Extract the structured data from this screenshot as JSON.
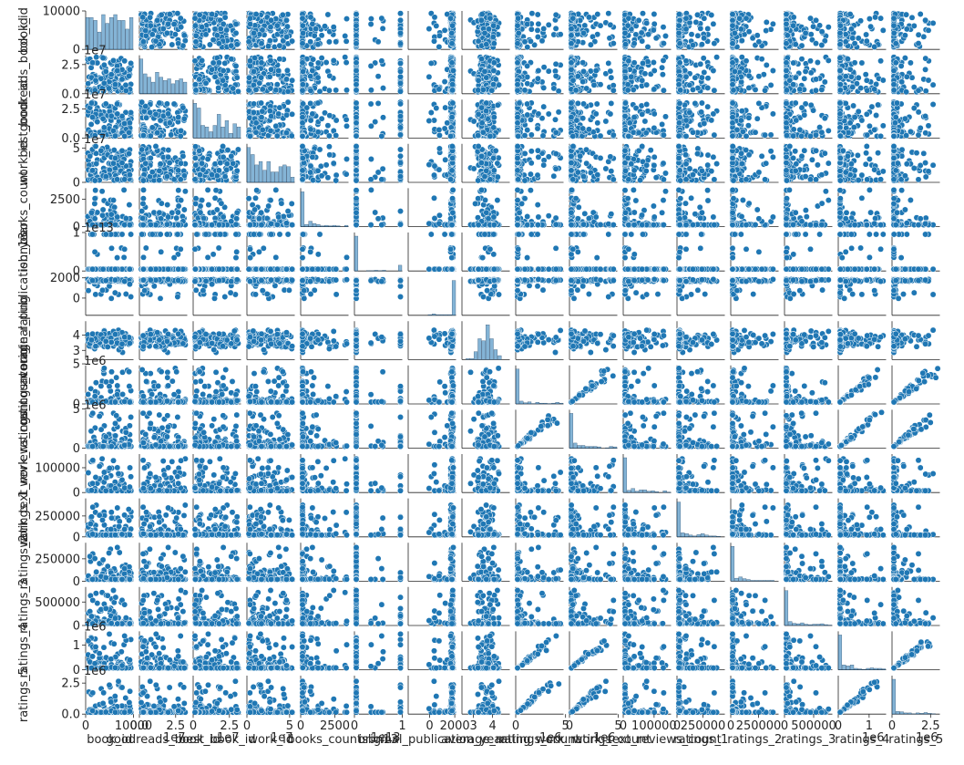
{
  "chart_data": {
    "type": "scatter",
    "kind": "pairplot",
    "marker_color": "#1f77b4",
    "diagonal": "histogram",
    "variables": [
      {
        "name": "book_id",
        "label": "book_id",
        "ylim": [
          0,
          10000
        ],
        "ticks": [
          0,
          10000
        ],
        "tick_labels": [
          "0",
          "10000"
        ],
        "xticks": [
          0,
          10000
        ],
        "xtick_labels": [
          "0",
          "10000"
        ],
        "offset": "",
        "pattern": "uniform"
      },
      {
        "name": "goodreads_book_id",
        "label": "goodreads_book_id",
        "ylim": [
          0,
          3.3
        ],
        "ticks": [
          0,
          2.5
        ],
        "tick_labels": [
          "0.0",
          "2.5"
        ],
        "xticks": [
          0,
          2.5
        ],
        "xtick_labels": [
          "0.0",
          "2.5"
        ],
        "offset": "1e7",
        "pattern": "skew"
      },
      {
        "name": "best_book_id",
        "label": "best_book_id",
        "ylim": [
          0,
          3.3
        ],
        "ticks": [
          0,
          2.5
        ],
        "tick_labels": [
          "0.0",
          "2.5"
        ],
        "xticks": [
          0,
          2.5
        ],
        "xtick_labels": [
          "0",
          "2.5"
        ],
        "offset": "1e7",
        "pattern": "skew"
      },
      {
        "name": "work_id",
        "label": "work_id",
        "ylim": [
          0,
          5.6
        ],
        "ticks": [
          0,
          5
        ],
        "tick_labels": [
          "0",
          "5"
        ],
        "xticks": [
          0,
          5
        ],
        "xtick_labels": [
          "0",
          "5"
        ],
        "offset": "1e7",
        "pattern": "skew"
      },
      {
        "name": "books_count",
        "label": "books_count",
        "ylim": [
          0,
          3500
        ],
        "ticks": [
          0,
          2500
        ],
        "tick_labels": [
          "0",
          "2500"
        ],
        "xticks": [
          0,
          2500
        ],
        "xtick_labels": [
          "0",
          "2500"
        ],
        "offset": "",
        "pattern": "heavy"
      },
      {
        "name": "isbn13",
        "label": "isbn13",
        "ylim": [
          0,
          1
        ],
        "ticks": [
          0,
          1
        ],
        "tick_labels": [
          "0",
          "1"
        ],
        "xticks": [
          0,
          1
        ],
        "xtick_labels": [
          "0",
          "1"
        ],
        "offset": "1e13",
        "pattern": "binary"
      },
      {
        "name": "original_publication_year",
        "label": "original_publication_year",
        "ylim": [
          -1700,
          2100
        ],
        "ticks": [
          0,
          2000
        ],
        "tick_labels": [
          "0",
          "2000"
        ],
        "xticks": [
          0,
          2000
        ],
        "xtick_labels": [
          "0",
          "2000"
        ],
        "offset": "",
        "pattern": "topheavy"
      },
      {
        "name": "average_rating",
        "label": "average_rating",
        "ylim": [
          2.4,
          4.9
        ],
        "ticks": [
          3,
          4
        ],
        "tick_labels": [
          "3",
          "4"
        ],
        "xticks": [
          3,
          4
        ],
        "xtick_labels": [
          "3",
          "4"
        ],
        "offset": "",
        "pattern": "normal"
      },
      {
        "name": "ratings_count",
        "label": "ratings_count",
        "ylim": [
          0,
          4.8
        ],
        "ticks": [
          0,
          5
        ],
        "tick_labels": [
          "0",
          "5"
        ],
        "xticks": [
          0,
          5
        ],
        "xtick_labels": [
          "0",
          "5"
        ],
        "offset": "1e6",
        "pattern": "heavy"
      },
      {
        "name": "work_ratings_count",
        "label": "work_ratings_count",
        "ylim": [
          0,
          4.9
        ],
        "ticks": [
          0,
          5
        ],
        "tick_labels": [
          "0",
          "5"
        ],
        "xticks": [
          0,
          5
        ],
        "xtick_labels": [
          "0",
          "5"
        ],
        "offset": "1e6",
        "pattern": "heavy"
      },
      {
        "name": "work_text_reviews_count",
        "label": "work_text_reviews_count",
        "ylim": [
          0,
          155000
        ],
        "ticks": [
          0,
          100000
        ],
        "tick_labels": [
          "0",
          "100000"
        ],
        "xticks": [
          0,
          100000
        ],
        "xtick_labels": [
          "0",
          "100000"
        ],
        "offset": "",
        "pattern": "heavy"
      },
      {
        "name": "ratings_1",
        "label": "ratings_1",
        "ylim": [
          0,
          460000
        ],
        "ticks": [
          0,
          250000
        ],
        "tick_labels": [
          "0",
          "250000"
        ],
        "xticks": [
          0,
          250000
        ],
        "xtick_labels": [
          "0",
          "250000"
        ],
        "offset": "",
        "pattern": "heavy"
      },
      {
        "name": "ratings_2",
        "label": "ratings_2",
        "ylim": [
          0,
          430000
        ],
        "ticks": [
          0,
          250000
        ],
        "tick_labels": [
          "0",
          "250000"
        ],
        "xticks": [
          0,
          250000
        ],
        "xtick_labels": [
          "0",
          "250000"
        ],
        "offset": "",
        "pattern": "heavy"
      },
      {
        "name": "ratings_3",
        "label": "ratings_3",
        "ylim": [
          0,
          820000
        ],
        "ticks": [
          0,
          500000
        ],
        "tick_labels": [
          "0",
          "500000"
        ],
        "xticks": [
          0,
          500000
        ],
        "xtick_labels": [
          "0",
          "500000"
        ],
        "offset": "",
        "pattern": "heavy"
      },
      {
        "name": "ratings_4",
        "label": "ratings_4",
        "ylim": [
          0,
          1.55
        ],
        "ticks": [
          0,
          1
        ],
        "tick_labels": [
          "0",
          "1"
        ],
        "xticks": [
          0,
          1
        ],
        "xtick_labels": [
          "0",
          "1"
        ],
        "offset": "1e6",
        "pattern": "heavy"
      },
      {
        "name": "ratings_5",
        "label": "ratings_5",
        "ylim": [
          0,
          3.1
        ],
        "ticks": [
          0,
          2.5
        ],
        "tick_labels": [
          "0.0",
          "2.5"
        ],
        "xticks": [
          0,
          2.5
        ],
        "xtick_labels": [
          "0",
          "2.5"
        ],
        "offset": "1e6",
        "pattern": "heavy"
      }
    ]
  }
}
